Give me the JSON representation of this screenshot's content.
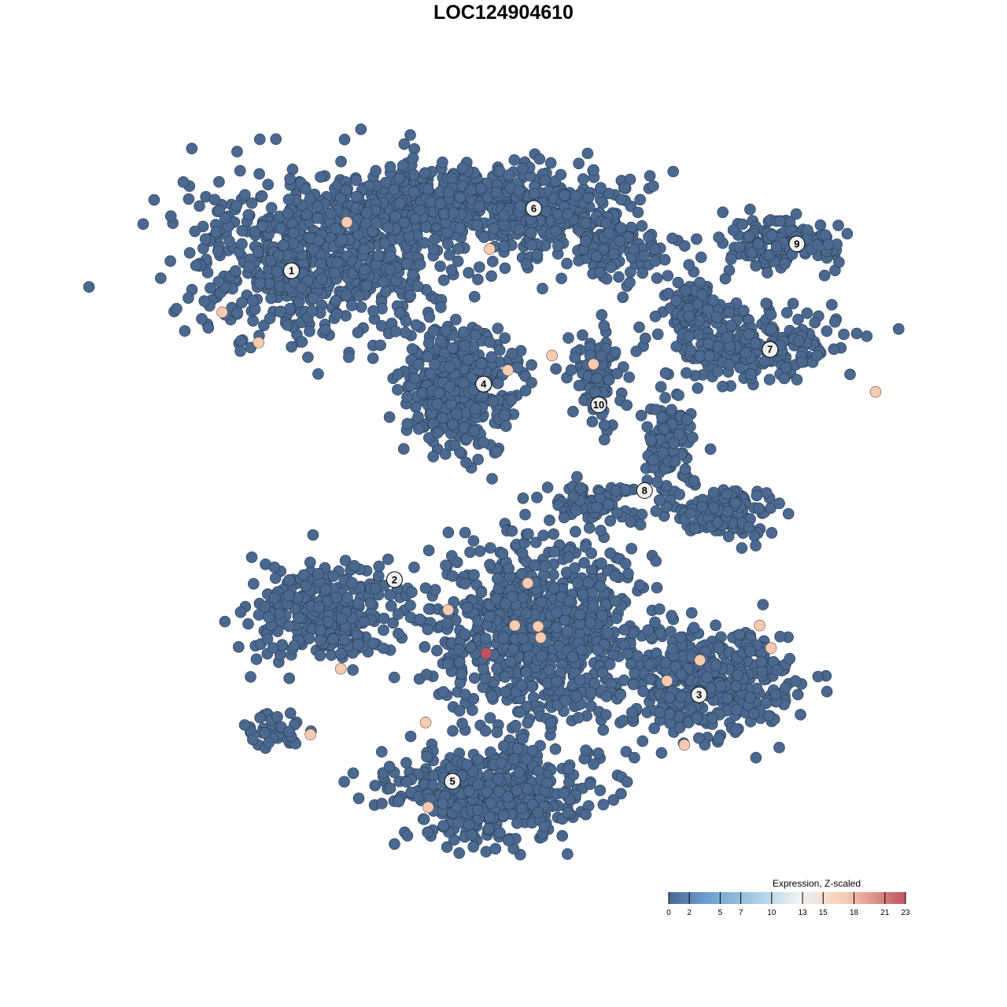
{
  "chart_data": {
    "type": "scatter",
    "title": "LOC124904610",
    "xlabel": "",
    "ylabel": "",
    "grid": false,
    "axes_visible": false,
    "point_color_default": "#4a6890",
    "cluster_labels": [
      {
        "label": "1",
        "x": -24.5,
        "y": 26.9
      },
      {
        "label": "2",
        "x": -12.6,
        "y": -8.8
      },
      {
        "label": "3",
        "x": 22.6,
        "y": -22.1
      },
      {
        "label": "4",
        "x": -2.3,
        "y": 13.8
      },
      {
        "label": "5",
        "x": -5.9,
        "y": -32.1
      },
      {
        "label": "6",
        "x": 3.5,
        "y": 34.1
      },
      {
        "label": "7",
        "x": 30.8,
        "y": 17.8
      },
      {
        "label": "8",
        "x": 16.3,
        "y": 1.5
      },
      {
        "label": "9",
        "x": 33.9,
        "y": 30.0
      },
      {
        "label": "10",
        "x": 11.0,
        "y": 11.4
      }
    ],
    "expressing_points": [
      {
        "x": -18.1,
        "y": 32.5,
        "v": 16
      },
      {
        "x": -1.6,
        "y": 29.4,
        "v": 16
      },
      {
        "x": -32.5,
        "y": 22.1,
        "v": 16
      },
      {
        "x": -28.3,
        "y": 18.6,
        "v": 16
      },
      {
        "x": 0.5,
        "y": 15.4,
        "v": 16
      },
      {
        "x": 5.6,
        "y": 17.1,
        "v": 16
      },
      {
        "x": 10.4,
        "y": 16.1,
        "v": 16
      },
      {
        "x": 43.0,
        "y": 12.9,
        "v": 16
      },
      {
        "x": 2.8,
        "y": -9.2,
        "v": 16
      },
      {
        "x": -6.4,
        "y": -12.3,
        "v": 16
      },
      {
        "x": 1.3,
        "y": -14.1,
        "v": 16
      },
      {
        "x": 4.0,
        "y": -14.2,
        "v": 16
      },
      {
        "x": 4.3,
        "y": -15.5,
        "v": 16
      },
      {
        "x": -2.0,
        "y": -17.3,
        "v": 23
      },
      {
        "x": -18.8,
        "y": -19.1,
        "v": 16
      },
      {
        "x": 22.7,
        "y": -18.1,
        "v": 16
      },
      {
        "x": 18.9,
        "y": -20.5,
        "v": 16
      },
      {
        "x": 29.6,
        "y": -14.1,
        "v": 16
      },
      {
        "x": 30.9,
        "y": -16.7,
        "v": 16
      },
      {
        "x": 20.9,
        "y": -27.9,
        "v": 16
      },
      {
        "x": -9.0,
        "y": -25.3,
        "v": 16
      },
      {
        "x": -22.3,
        "y": -26.7,
        "v": 16
      },
      {
        "x": -8.7,
        "y": -35.1,
        "v": 16
      }
    ],
    "legend": {
      "title": "Expression, Z-scaled",
      "placement": "bottom-right",
      "range": [
        0,
        23
      ],
      "ticks": [
        "0",
        "2",
        "5",
        "7",
        "10",
        "13",
        "15",
        "18",
        "21",
        "23"
      ],
      "colors": [
        "#4a6890",
        "#6a9ccc",
        "#9ecae1",
        "#f4f4f4",
        "#f7cbb0",
        "#c0535f"
      ]
    }
  }
}
